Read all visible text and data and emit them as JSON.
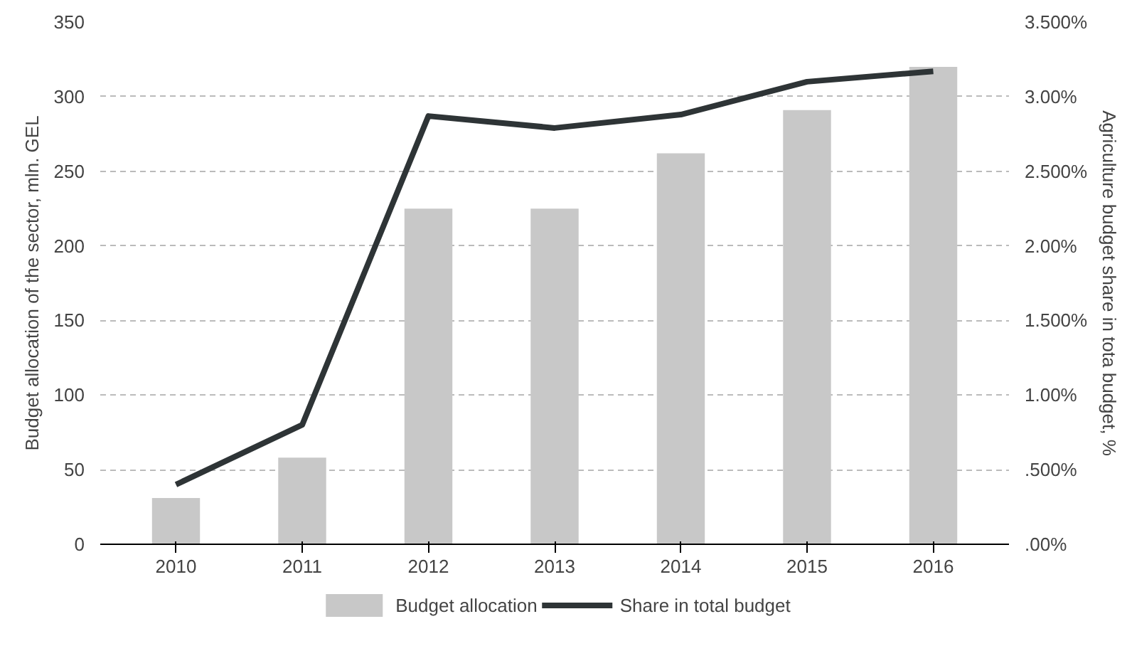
{
  "chart_data": {
    "type": "bar",
    "categories": [
      "2010",
      "2011",
      "2012",
      "2013",
      "2014",
      "2015",
      "2016"
    ],
    "ylabel": "Budget allocation of the sector, mln. GEL",
    "y2label": "Agriculture budget share in tota budget, %",
    "series": [
      {
        "name": "Budget allocation",
        "type": "bar",
        "color": "#c8c8c8",
        "values": [
          31,
          58,
          225,
          225,
          262,
          291,
          320
        ]
      },
      {
        "name": "Share in total budget",
        "type": "line",
        "axis": "y2",
        "color": "#2e3436",
        "values": [
          0.4,
          0.8,
          2.87,
          2.79,
          2.88,
          3.1,
          3.17
        ]
      }
    ],
    "ylim": [
      0,
      350
    ],
    "yticks": [
      0,
      50,
      100,
      150,
      200,
      250,
      300,
      350
    ],
    "y2lim": [
      0,
      3.5
    ],
    "y2ticks": [
      {
        "value": 0,
        "label": ".00%"
      },
      {
        "value": 0.5,
        "label": ".500%"
      },
      {
        "value": 1,
        "label": "1.00%"
      },
      {
        "value": 1.5,
        "label": "1.500%"
      },
      {
        "value": 2,
        "label": "2.00%"
      },
      {
        "value": 2.5,
        "label": "2.500%"
      },
      {
        "value": 3,
        "label": "3.00%"
      },
      {
        "value": 3.5,
        "label": "3.500%"
      }
    ],
    "grid": "y",
    "legend": "bottom",
    "marker": "none",
    "line_style": "solid"
  }
}
